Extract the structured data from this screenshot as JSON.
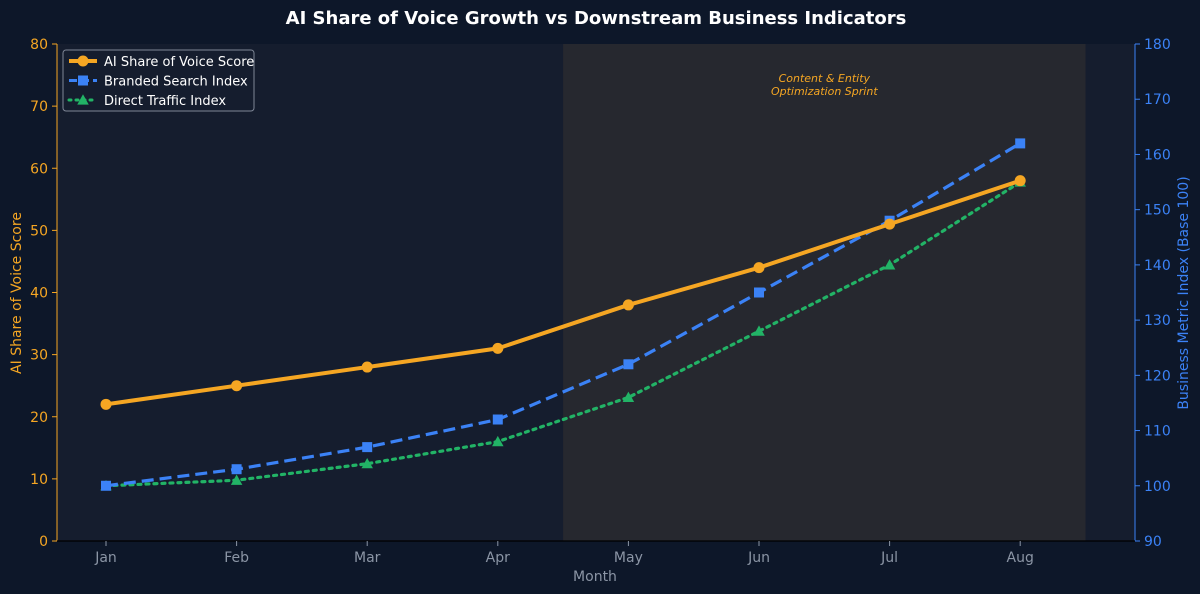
{
  "chart_data": {
    "type": "line",
    "title": "AI Share of Voice Growth vs Downstream Business Indicators",
    "xlabel": "Month",
    "ylabel_left": "AI Share of Voice Score",
    "ylabel_right": "Business Metric Index (Base 100)",
    "categories": [
      "Jan",
      "Feb",
      "Mar",
      "Apr",
      "May",
      "Jun",
      "Jul",
      "Aug"
    ],
    "ylim_left": [
      0,
      80
    ],
    "yticks_left": [
      0,
      10,
      20,
      30,
      40,
      50,
      60,
      70,
      80
    ],
    "ylim_right": [
      90,
      180
    ],
    "yticks_right": [
      90,
      100,
      110,
      120,
      130,
      140,
      150,
      160,
      170,
      180
    ],
    "grid": false,
    "legend_position": "top-left",
    "series": [
      {
        "name": "AI Share of Voice Score",
        "axis": "left",
        "values": [
          22,
          25,
          28,
          31,
          38,
          44,
          51,
          58
        ],
        "color": "#f5a623",
        "style": "solid",
        "marker": "circle"
      },
      {
        "name": "Branded Search Index",
        "axis": "right",
        "values": [
          100,
          103,
          107,
          112,
          122,
          135,
          148,
          162
        ],
        "color": "#3b82f6",
        "style": "dashed",
        "marker": "square"
      },
      {
        "name": "Direct Traffic Index",
        "axis": "right",
        "values": [
          100,
          101,
          104,
          108,
          116,
          128,
          140,
          155
        ],
        "color": "#22b366",
        "style": "dotted",
        "marker": "triangle"
      }
    ],
    "annotation": {
      "lines": [
        "Content & Entity",
        "Optimization Sprint"
      ],
      "x_start": 3.5,
      "x_end": 7.5
    },
    "colors": {
      "background": "#0d1729",
      "plot_background": "#151d2e",
      "shade": "#26282f",
      "left_axis": "#f5a623",
      "right_axis": "#3b82f6",
      "x_axis": "#8b95a5"
    }
  }
}
